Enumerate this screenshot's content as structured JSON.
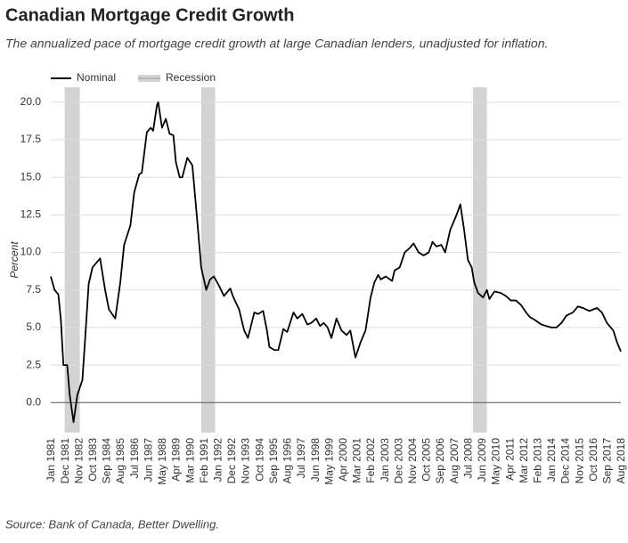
{
  "chart_data": {
    "type": "line",
    "title": "Canadian Mortgage Credit Growth",
    "subtitle": "The annualized pace of mortgage credit growth at large Canadian lenders, unadjusted for inflation.",
    "ylabel": "Percent",
    "source": "Source: Bank of Canada, Better Dwelling.",
    "recession_label": "Recession",
    "recession_color": "#d3d3d3",
    "recessions": [
      {
        "start": "1981-12",
        "end": "1982-12"
      },
      {
        "start": "1990-12",
        "end": "1991-11"
      },
      {
        "start": "2008-11",
        "end": "2009-10"
      }
    ],
    "x": [
      "1981-01",
      "1981-04",
      "1981-07",
      "1981-09",
      "1981-11",
      "1982-02",
      "1982-04",
      "1982-07",
      "1982-10",
      "1983-02",
      "1983-04",
      "1983-07",
      "1983-10",
      "1984-04",
      "1984-08",
      "1984-11",
      "1985-04",
      "1985-08",
      "1985-11",
      "1986-04",
      "1986-07",
      "1986-11",
      "1987-01",
      "1987-05",
      "1987-08",
      "1987-10",
      "1988-01",
      "1988-02",
      "1988-05",
      "1988-08",
      "1988-11",
      "1989-02",
      "1989-04",
      "1989-07",
      "1989-09",
      "1990-01",
      "1990-05",
      "1990-09",
      "1990-12",
      "1991-04",
      "1991-07",
      "1991-10",
      "1992-02",
      "1992-06",
      "1992-11",
      "1993-01",
      "1993-06",
      "1993-10",
      "1994-01",
      "1994-06",
      "1994-09",
      "1995-01",
      "1995-04",
      "1995-06",
      "1995-10",
      "1996-01",
      "1996-05",
      "1996-08",
      "1997-01",
      "1997-04",
      "1997-08",
      "1997-12",
      "1998-03",
      "1998-07",
      "1998-10",
      "1999-01",
      "1999-04",
      "1999-07",
      "1999-11",
      "2000-03",
      "2000-07",
      "2000-10",
      "2001-02",
      "2001-06",
      "2001-10",
      "2002-02",
      "2002-05",
      "2002-08",
      "2002-10",
      "2003-02",
      "2003-07",
      "2003-09",
      "2004-01",
      "2004-05",
      "2004-09",
      "2004-12",
      "2005-04",
      "2005-08",
      "2005-12",
      "2006-03",
      "2006-06",
      "2006-10",
      "2007-01",
      "2007-05",
      "2007-10",
      "2008-01",
      "2008-04",
      "2008-07",
      "2008-10",
      "2008-12",
      "2009-03",
      "2009-07",
      "2009-10",
      "2009-12",
      "2010-04",
      "2010-09",
      "2011-01",
      "2011-05",
      "2011-09",
      "2012-01",
      "2012-05",
      "2012-08",
      "2012-12",
      "2013-05",
      "2013-09",
      "2014-01",
      "2014-05",
      "2014-09",
      "2015-01",
      "2015-06",
      "2015-10",
      "2016-02",
      "2016-07",
      "2017-01",
      "2017-05",
      "2017-09",
      "2018-02",
      "2018-05",
      "2018-08"
    ],
    "series": [
      {
        "name": "Nominal",
        "color": "#000000",
        "values": [
          8.4,
          7.5,
          7.2,
          5.5,
          2.5,
          2.5,
          0.5,
          -1.3,
          0.5,
          1.5,
          4.0,
          7.9,
          9.0,
          9.6,
          7.5,
          6.2,
          5.6,
          8.0,
          10.5,
          11.8,
          14.0,
          15.2,
          15.3,
          18.0,
          18.3,
          18.1,
          19.8,
          20.0,
          18.3,
          18.9,
          17.9,
          17.8,
          16.0,
          15.0,
          15.0,
          16.3,
          15.8,
          12.0,
          9.0,
          7.5,
          8.2,
          8.4,
          7.8,
          7.1,
          7.6,
          7.1,
          6.2,
          4.8,
          4.3,
          6.0,
          5.9,
          6.1,
          4.8,
          3.7,
          3.5,
          3.5,
          4.9,
          4.7,
          6.0,
          5.6,
          5.9,
          5.2,
          5.3,
          5.6,
          5.1,
          5.3,
          5.0,
          4.3,
          5.6,
          4.8,
          4.5,
          4.8,
          3.0,
          4.0,
          4.8,
          7.0,
          8.0,
          8.5,
          8.2,
          8.4,
          8.1,
          8.8,
          9.0,
          10.0,
          10.3,
          10.6,
          10.0,
          9.8,
          10.0,
          10.7,
          10.4,
          10.5,
          10.0,
          11.5,
          12.5,
          13.2,
          11.5,
          9.5,
          9.0,
          8.0,
          7.3,
          7.0,
          7.5,
          6.9,
          7.4,
          7.3,
          7.1,
          6.8,
          6.8,
          6.5,
          6.0,
          5.7,
          5.5,
          5.2,
          5.1,
          5.0,
          5.0,
          5.3,
          5.8,
          6.0,
          6.4,
          6.3,
          6.1,
          6.3,
          6.0,
          5.3,
          4.8,
          4.0,
          3.4
        ]
      }
    ],
    "xlim": [
      "1981-01",
      "2018-08"
    ],
    "xticks": [
      {
        "value": "1981-01",
        "label": "Jan 1981"
      },
      {
        "value": "1981-12",
        "label": "Dec 1981"
      },
      {
        "value": "1982-11",
        "label": "Nov 1982"
      },
      {
        "value": "1983-10",
        "label": "Oct 1983"
      },
      {
        "value": "1984-09",
        "label": "Sep 1984"
      },
      {
        "value": "1985-08",
        "label": "Aug 1985"
      },
      {
        "value": "1986-07",
        "label": "Jul 1986"
      },
      {
        "value": "1987-06",
        "label": "Jun 1987"
      },
      {
        "value": "1988-05",
        "label": "May 1988"
      },
      {
        "value": "1989-04",
        "label": "Apr 1989"
      },
      {
        "value": "1990-03",
        "label": "Mar 1990"
      },
      {
        "value": "1991-02",
        "label": "Feb 1991"
      },
      {
        "value": "1992-01",
        "label": "Jan 1992"
      },
      {
        "value": "1992-12",
        "label": "Dec 1992"
      },
      {
        "value": "1993-11",
        "label": "Nov 1993"
      },
      {
        "value": "1994-10",
        "label": "Oct 1994"
      },
      {
        "value": "1995-09",
        "label": "Sep 1995"
      },
      {
        "value": "1996-08",
        "label": "Aug 1996"
      },
      {
        "value": "1997-07",
        "label": "Jul 1997"
      },
      {
        "value": "1998-06",
        "label": "Jun 1998"
      },
      {
        "value": "1999-05",
        "label": "May 1999"
      },
      {
        "value": "2000-04",
        "label": "Apr 2000"
      },
      {
        "value": "2001-03",
        "label": "Mar 2001"
      },
      {
        "value": "2002-02",
        "label": "Feb 2002"
      },
      {
        "value": "2003-01",
        "label": "Jan 2003"
      },
      {
        "value": "2003-12",
        "label": "Dec 2003"
      },
      {
        "value": "2004-11",
        "label": "Nov 2004"
      },
      {
        "value": "2005-10",
        "label": "Oct 2005"
      },
      {
        "value": "2006-09",
        "label": "Sep 2006"
      },
      {
        "value": "2007-08",
        "label": "Aug 2007"
      },
      {
        "value": "2008-07",
        "label": "Jul 2008"
      },
      {
        "value": "2009-06",
        "label": "Jun 2009"
      },
      {
        "value": "2010-05",
        "label": "May 2010"
      },
      {
        "value": "2011-04",
        "label": "Apr 2011"
      },
      {
        "value": "2012-03",
        "label": "Mar 2012"
      },
      {
        "value": "2013-02",
        "label": "Feb 2013"
      },
      {
        "value": "2014-01",
        "label": "Jan 2014"
      },
      {
        "value": "2014-12",
        "label": "Dec 2014"
      },
      {
        "value": "2015-11",
        "label": "Nov 2015"
      },
      {
        "value": "2016-10",
        "label": "Oct 2016"
      },
      {
        "value": "2017-09",
        "label": "Sep 2017"
      },
      {
        "value": "2018-08",
        "label": "Aug 2018"
      }
    ],
    "ylim": [
      -2,
      21
    ],
    "yticks": [
      {
        "value": 0,
        "label": "0.0"
      },
      2.5,
      {
        "value": 5,
        "label": "5.0"
      },
      7.5,
      {
        "value": 10,
        "label": "10.0"
      },
      12.5,
      {
        "value": 15,
        "label": "15.0"
      },
      17.5,
      {
        "value": 20,
        "label": "20.0"
      }
    ],
    "grid": true,
    "legend": "top-left"
  }
}
